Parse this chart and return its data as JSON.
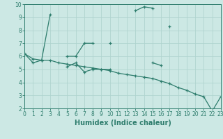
{
  "xlabel": "Humidex (Indice chaleur)",
  "x_values": [
    0,
    1,
    2,
    3,
    4,
    5,
    6,
    7,
    8,
    9,
    10,
    11,
    12,
    13,
    14,
    15,
    16,
    17,
    18,
    19,
    20,
    21,
    22,
    23
  ],
  "line1": [
    6.2,
    5.5,
    5.7,
    9.2,
    null,
    6.0,
    6.0,
    7.0,
    7.0,
    null,
    7.0,
    null,
    null,
    9.5,
    9.8,
    9.7,
    null,
    8.3,
    null,
    null,
    null,
    null,
    null,
    null
  ],
  "line2": [
    null,
    null,
    null,
    null,
    null,
    5.2,
    5.5,
    4.8,
    5.0,
    5.0,
    5.0,
    null,
    null,
    null,
    null,
    5.5,
    5.3,
    null,
    null,
    null,
    null,
    null,
    null,
    null
  ],
  "line3": [
    6.2,
    5.8,
    5.7,
    5.7,
    5.5,
    5.4,
    5.3,
    5.2,
    5.1,
    5.0,
    4.9,
    4.7,
    4.6,
    4.5,
    4.4,
    4.3,
    4.1,
    3.9,
    3.6,
    3.4,
    3.1,
    2.9,
    1.8,
    2.9
  ],
  "line_color": "#2e7d6d",
  "bg_color": "#cce8e4",
  "grid_color": "#b0d4cf",
  "spine_color": "#2e7d6d",
  "xlim": [
    0,
    23
  ],
  "ylim": [
    2,
    10
  ],
  "yticks": [
    2,
    3,
    4,
    5,
    6,
    7,
    8,
    9,
    10
  ],
  "xticks": [
    0,
    1,
    2,
    3,
    4,
    5,
    6,
    7,
    8,
    9,
    10,
    11,
    12,
    13,
    14,
    15,
    16,
    17,
    18,
    19,
    20,
    21,
    22,
    23
  ],
  "tick_fontsize": 5.5,
  "xlabel_fontsize": 7.0,
  "marker_size": 3.5,
  "lw": 0.9
}
